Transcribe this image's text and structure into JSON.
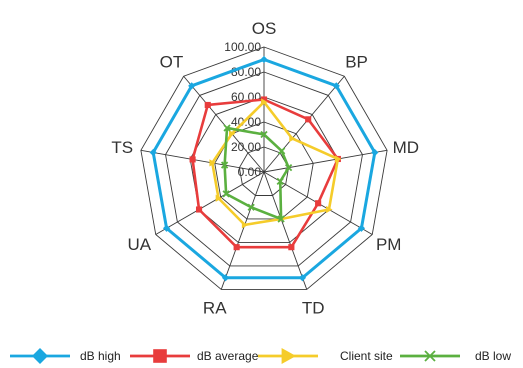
{
  "chart_data": {
    "type": "radar",
    "title": "",
    "categories": [
      "OS",
      "BP",
      "MD",
      "PM",
      "TD",
      "RA",
      "UA",
      "TS",
      "OT"
    ],
    "axis": {
      "min": 0,
      "max": 100,
      "step": 20,
      "tick_labels": [
        "0.00",
        "20.00",
        "40.00",
        "60.00",
        "80.00",
        "100.00"
      ]
    },
    "grid": true,
    "legend_position": "bottom",
    "series": [
      {
        "name": "dB high",
        "color": "#1aa7e0",
        "marker": "diamond",
        "values": [
          90,
          90,
          90,
          90,
          90,
          90,
          90,
          90,
          90
        ]
      },
      {
        "name": "dB average",
        "color": "#e83c3c",
        "marker": "square",
        "values": [
          58,
          55,
          60,
          50,
          64,
          64,
          60,
          58,
          70
        ]
      },
      {
        "name": "Client site",
        "color": "#f5cc2a",
        "marker": "triangle",
        "values": [
          56,
          35,
          60,
          60,
          40,
          45,
          42,
          42,
          40
        ]
      },
      {
        "name": "dB low",
        "color": "#5bb040",
        "marker": "x",
        "values": [
          30,
          22,
          20,
          15,
          40,
          30,
          35,
          32,
          46
        ]
      }
    ]
  }
}
